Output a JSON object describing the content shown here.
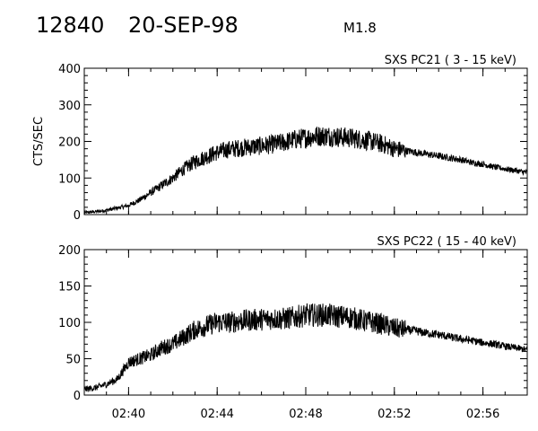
{
  "header": {
    "event_number": "12840",
    "date": "20-SEP-98",
    "flare_class": "M1.8"
  },
  "chart_data": [
    {
      "type": "line",
      "title": "SXS PC21 (  3 - 15 keV)",
      "ylabel": "CTS/SEC",
      "xlabel": "",
      "xlim": [
        "02:38:00",
        "02:58:00"
      ],
      "ylim": [
        0,
        400
      ],
      "yticks": [
        0,
        100,
        200,
        300,
        400
      ],
      "xticks": [
        "02:40",
        "02:44",
        "02:48",
        "02:52",
        "02:56"
      ],
      "xtick_labels_shown": false,
      "series": [
        {
          "x": [
            "02:38:00",
            "02:38:30",
            "02:39:00",
            "02:39:30",
            "02:40:00",
            "02:40:30",
            "02:41:00",
            "02:41:30",
            "02:42:00",
            "02:42:30",
            "02:43:00",
            "02:43:30",
            "02:44:00",
            "02:44:30",
            "02:45:00",
            "02:45:30",
            "02:46:00",
            "02:46:30",
            "02:47:00",
            "02:47:30",
            "02:48:00",
            "02:48:30",
            "02:49:00",
            "02:49:30",
            "02:50:00",
            "02:50:30",
            "02:51:00",
            "02:51:30",
            "02:52:00",
            "02:52:30",
            "02:53:00",
            "02:53:30",
            "02:54:00",
            "02:54:30",
            "02:55:00",
            "02:55:30",
            "02:56:00",
            "02:56:30",
            "02:57:00",
            "02:57:30",
            "02:58:00"
          ],
          "values": [
            5,
            8,
            12,
            18,
            25,
            40,
            60,
            80,
            100,
            125,
            145,
            158,
            170,
            178,
            182,
            185,
            188,
            192,
            197,
            205,
            210,
            215,
            215,
            212,
            210,
            205,
            200,
            192,
            180,
            175,
            170,
            165,
            160,
            155,
            150,
            142,
            138,
            130,
            125,
            120,
            115
          ]
        }
      ]
    },
    {
      "type": "line",
      "title": "SXS PC22  ( 15 - 40 keV)",
      "ylabel": "",
      "xlabel": "",
      "xlim": [
        "02:38:00",
        "02:58:00"
      ],
      "ylim": [
        0,
        200
      ],
      "yticks": [
        0,
        50,
        100,
        150,
        200
      ],
      "xticks": [
        "02:40",
        "02:44",
        "02:48",
        "02:52",
        "02:56"
      ],
      "xtick_labels_shown": true,
      "series": [
        {
          "x": [
            "02:38:00",
            "02:38:30",
            "02:39:00",
            "02:39:30",
            "02:40:00",
            "02:40:30",
            "02:41:00",
            "02:41:30",
            "02:42:00",
            "02:42:30",
            "02:43:00",
            "02:43:30",
            "02:44:00",
            "02:44:30",
            "02:45:00",
            "02:45:30",
            "02:46:00",
            "02:46:30",
            "02:47:00",
            "02:47:30",
            "02:48:00",
            "02:48:30",
            "02:49:00",
            "02:49:30",
            "02:50:00",
            "02:50:30",
            "02:51:00",
            "02:51:30",
            "02:52:00",
            "02:52:30",
            "02:53:00",
            "02:53:30",
            "02:54:00",
            "02:54:30",
            "02:55:00",
            "02:55:30",
            "02:56:00",
            "02:56:30",
            "02:57:00",
            "02:57:30",
            "02:58:00"
          ],
          "values": [
            8,
            10,
            15,
            22,
            45,
            50,
            55,
            65,
            70,
            80,
            90,
            95,
            100,
            100,
            102,
            103,
            104,
            105,
            105,
            107,
            110,
            110,
            110,
            108,
            107,
            103,
            100,
            97,
            92,
            90,
            88,
            85,
            83,
            80,
            77,
            75,
            72,
            70,
            67,
            65,
            62
          ]
        }
      ]
    }
  ]
}
